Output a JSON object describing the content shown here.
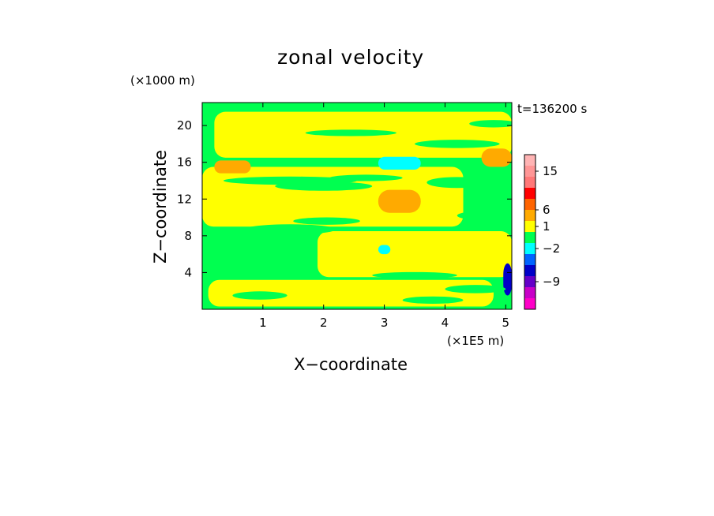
{
  "chart_data": {
    "type": "heatmap",
    "title": "zonal velocity",
    "xlabel": "X−coordinate",
    "ylabel": "Z−coordinate",
    "x_unit": "(×1E5 m)",
    "y_unit": "(×1000 m)",
    "time_label": "t=136200 s",
    "xlim": [
      0,
      5.1
    ],
    "ylim": [
      0,
      22.5
    ],
    "x_ticks": [
      "1",
      "2",
      "3",
      "4",
      "5"
    ],
    "x_tick_values": [
      1,
      2,
      3,
      4,
      5
    ],
    "y_ticks": [
      "4",
      "8",
      "12",
      "16",
      "20"
    ],
    "y_tick_values": [
      4,
      8,
      12,
      16,
      20
    ],
    "colorbar": {
      "levels_top_to_bottom": [
        {
          "color": "#ffb4b4"
        },
        {
          "color": "#ff9696"
        },
        {
          "color": "#ff7878"
        },
        {
          "color": "#ff0000"
        },
        {
          "color": "#ff6400"
        },
        {
          "color": "#ffaa00"
        },
        {
          "color": "#ffff00"
        },
        {
          "color": "#00ff50"
        },
        {
          "color": "#00ffff"
        },
        {
          "color": "#0064ff"
        },
        {
          "color": "#0000c8"
        },
        {
          "color": "#6400c8"
        },
        {
          "color": "#c800c8"
        },
        {
          "color": "#ff00c8"
        }
      ],
      "tick_labels": [
        "15",
        "6",
        "1",
        "−2",
        "−9"
      ]
    },
    "field_regions": [
      {
        "level": "green",
        "x": [
          0,
          5.1
        ],
        "z": [
          0,
          22.5
        ]
      },
      {
        "level": "yellow",
        "x": [
          0.2,
          5.1
        ],
        "z": [
          16.5,
          21.5
        ]
      },
      {
        "level": "yellow",
        "x": [
          0,
          4.3
        ],
        "z": [
          9,
          15.5
        ]
      },
      {
        "level": "yellow",
        "x": [
          1.9,
          5.1
        ],
        "z": [
          3.5,
          8.5
        ]
      },
      {
        "level": "yellow",
        "x": [
          0.1,
          4.8
        ],
        "z": [
          0.3,
          3.2
        ]
      },
      {
        "level": "orange",
        "x": [
          0.2,
          0.8
        ],
        "z": [
          14.8,
          16.2
        ]
      },
      {
        "level": "orange",
        "x": [
          2.9,
          3.6
        ],
        "z": [
          10.5,
          13
        ]
      },
      {
        "level": "orange",
        "x": [
          4.6,
          5.1
        ],
        "z": [
          15.5,
          17.5
        ]
      },
      {
        "level": "cyan",
        "x": [
          2.9,
          3.6
        ],
        "z": [
          15.2,
          16.6
        ]
      },
      {
        "level": "cyan",
        "x": [
          2.9,
          3.1
        ],
        "z": [
          6,
          7
        ]
      },
      {
        "level": "blue",
        "x": [
          4.96,
          5.1
        ],
        "z": [
          1.5,
          5
        ]
      }
    ]
  },
  "colors": {
    "background": "#ffffff",
    "axis": "#000000"
  }
}
